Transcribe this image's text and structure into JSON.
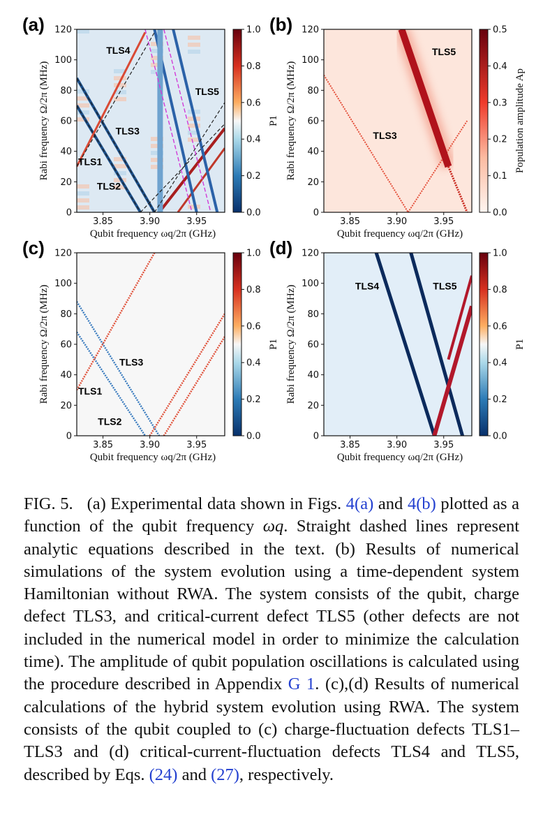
{
  "panels": [
    {
      "label": "(a)",
      "xlabel": "Qubit frequency ωq/2π (GHz)",
      "ylabel": "Rabi frequency Ω/2π (MHz)",
      "xticks": [
        "3.85",
        "3.90",
        "3.95"
      ],
      "yticks": [
        "0",
        "20",
        "40",
        "60",
        "80",
        "100",
        "120"
      ],
      "colorbar": {
        "label": "P1",
        "ticks": [
          "0.0",
          "0.2",
          "0.4",
          "0.6",
          "0.8",
          "1.0"
        ],
        "colormap": "blue-white-red"
      },
      "annotations": [
        "TLS4",
        "TLS5",
        "TLS3",
        "TLS1",
        "TLS2"
      ]
    },
    {
      "label": "(b)",
      "xlabel": "Qubit frequency ωq/2π (GHz)",
      "ylabel": "Rabi frequency Ω/2π (MHz)",
      "xticks": [
        "3.85",
        "3.90",
        "3.95"
      ],
      "yticks": [
        "0",
        "20",
        "40",
        "60",
        "80",
        "100",
        "120"
      ],
      "colorbar": {
        "label": "Population amplitude Ap",
        "ticks": [
          "0.0",
          "0.1",
          "0.2",
          "0.3",
          "0.4",
          "0.5"
        ],
        "colormap": "white-red"
      },
      "annotations": [
        "TLS5",
        "TLS3"
      ]
    },
    {
      "label": "(c)",
      "xlabel": "Qubit frequency ωq/2π (GHz)",
      "ylabel": "Rabi frequency Ω/2π (MHz)",
      "xticks": [
        "3.85",
        "3.90",
        "3.95"
      ],
      "yticks": [
        "0",
        "20",
        "40",
        "60",
        "80",
        "100",
        "120"
      ],
      "colorbar": {
        "label": "P1",
        "ticks": [
          "0.0",
          "0.2",
          "0.4",
          "0.6",
          "0.8",
          "1.0"
        ],
        "colormap": "blue-white-red"
      },
      "annotations": [
        "TLS3",
        "TLS1",
        "TLS2"
      ]
    },
    {
      "label": "(d)",
      "xlabel": "Qubit frequency ωq/2π (GHz)",
      "ylabel": "Rabi frequency Ω/2π (MHz)",
      "xticks": [
        "3.85",
        "3.90",
        "3.95"
      ],
      "yticks": [
        "0",
        "20",
        "40",
        "60",
        "80",
        "100",
        "120"
      ],
      "colorbar": {
        "label": "P1",
        "ticks": [
          "0.0",
          "0.2",
          "0.4",
          "0.6",
          "0.8",
          "1.0"
        ],
        "colormap": "blue-white-red"
      },
      "annotations": [
        "TLS4",
        "TLS5"
      ]
    }
  ],
  "caption": {
    "fig_label": "FIG. 5.",
    "t1": "(a) Experimental data shown in Figs.",
    "ref1": "4(a)",
    "t2": "and",
    "ref2": "4(b)",
    "t3": "plotted as a function of the qubit frequency",
    "sym": "ωq",
    "t4": ". Straight dashed lines represent analytic equations described in the text. (b) Results of numerical simulations of the system evolution using a time-dependent system Hamiltonian without RWA. The system consists of the qubit, charge defect TLS3, and critical-current defect TLS5 (other defects are not included in the numerical model in order to minimize the calculation time). The amplitude of qubit population oscillations is calculated using the procedure described in Appendix",
    "ref3": "G 1",
    "t5": ". (c),(d) Results of numerical calculations of the hybrid system evolution using RWA. The system consists of the qubit coupled to (c) charge-fluctuation defects TLS1–TLS3 and (d) critical-current-fluctuation defects TLS4 and TLS5, described by Eqs.",
    "ref4": "(24)",
    "t6": "and",
    "ref5": "(27)",
    "t7": ", respectively."
  }
}
